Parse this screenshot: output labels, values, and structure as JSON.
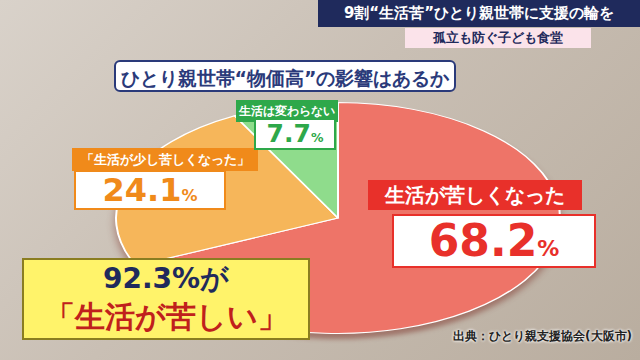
{
  "chart_data": {
    "type": "pie",
    "header": "9割“生活苦”ひとり親世帯に支援の輪を",
    "subtitle": "孤立も防ぐ子ども食堂",
    "title": "ひとり親世帯“物価高”の影響はあるか",
    "categories": [
      "生活が苦しくなった",
      "「生活が少し苦しくなった」",
      "生活は変わらない"
    ],
    "values": [
      68.2,
      24.1,
      7.7
    ],
    "value_labels": [
      "68.2%",
      "24.1%",
      "7.7%"
    ],
    "colors": [
      "#ee7468",
      "#f6b65a",
      "#8fdc8c"
    ],
    "data_labels": true,
    "annotations": [
      "92.3%が",
      "「生活が苦しい」"
    ],
    "source": "出典：ひとり親支援協会(大阪市)"
  }
}
